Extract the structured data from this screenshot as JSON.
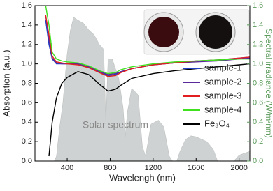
{
  "chart_data": {
    "type": "line",
    "x_label": "Wavelengh (nm)",
    "y_label": "Absorption (a.u.)",
    "y2_label": "Spectral irradiance (W/m²nm)",
    "annotation": "Solar spectrum",
    "xlim": [
      100,
      2100
    ],
    "xticks": [
      400,
      800,
      1200,
      1600,
      2000
    ],
    "ylim": [
      0,
      1.6
    ],
    "yticks": [
      {
        "value": 0,
        "label": "0.0"
      },
      0.2,
      0.4,
      0.6,
      0.8,
      {
        "value": 1,
        "label": "1.0"
      },
      1.2,
      1.4,
      1.6
    ],
    "y2lim": [
      0,
      1.6
    ],
    "y2ticks": [
      {
        "value": 0,
        "label": "0.0"
      },
      0.2,
      0.4,
      0.6,
      0.8,
      {
        "value": 1,
        "label": "1.0"
      },
      1.2,
      1.4,
      1.6
    ],
    "y2_color": "#5a9a5a",
    "x": [
      200,
      230,
      260,
      300,
      350,
      400,
      500,
      600,
      700,
      780,
      850,
      900,
      1000,
      1200,
      1400,
      1600,
      1800,
      2000,
      2100
    ],
    "series": [
      {
        "name": "sample-1",
        "color": "#2040c8",
        "values": [
          1.45,
          1.2,
          1.05,
          1.0,
          1.0,
          1.0,
          1.0,
          0.97,
          0.92,
          0.88,
          0.89,
          0.92,
          0.95,
          0.99,
          1.01,
          1.03,
          1.04,
          1.06,
          1.07
        ]
      },
      {
        "name": "sample-2",
        "color": "#5a2a9a",
        "values": [
          1.5,
          1.25,
          1.06,
          1.01,
          1.0,
          1.0,
          1.0,
          0.97,
          0.92,
          0.89,
          0.9,
          0.92,
          0.95,
          0.99,
          1.01,
          1.02,
          1.03,
          1.05,
          1.06
        ]
      },
      {
        "name": "sample-3",
        "color": "#e02020",
        "values": [
          1.5,
          1.3,
          1.08,
          1.02,
          1.01,
          1.0,
          0.99,
          0.96,
          0.91,
          0.87,
          0.88,
          0.91,
          0.95,
          0.99,
          1.01,
          1.03,
          1.04,
          1.06,
          1.07
        ]
      },
      {
        "name": "sample-4",
        "color": "#40e020",
        "values": [
          1.6,
          1.4,
          1.12,
          1.05,
          1.03,
          1.02,
          1.01,
          0.98,
          0.93,
          0.9,
          0.91,
          0.94,
          0.97,
          1.0,
          1.02,
          1.03,
          1.04,
          1.05,
          1.05
        ]
      },
      {
        "name": "Fe₃O₄",
        "color": "#000000",
        "values": [
          null,
          0.05,
          0.4,
          0.65,
          0.8,
          0.86,
          0.92,
          0.89,
          0.79,
          0.72,
          0.74,
          0.78,
          0.85,
          0.9,
          0.93,
          0.95,
          0.97,
          0.99,
          1.0
        ]
      }
    ],
    "area": {
      "color": "#cfd2d2",
      "axis": "y2",
      "x": [
        280,
        300,
        330,
        360,
        400,
        430,
        460,
        500,
        550,
        600,
        650,
        700,
        740,
        760,
        780,
        820,
        880,
        920,
        940,
        960,
        1000,
        1060,
        1100,
        1130,
        1180,
        1250,
        1300,
        1350,
        1380,
        1420,
        1450,
        1500,
        1550,
        1600,
        1700,
        1760,
        1800,
        1950,
        2000,
        2050,
        2100
      ],
      "values": [
        0,
        0.05,
        0.35,
        0.6,
        1.1,
        1.35,
        1.48,
        1.45,
        1.42,
        1.35,
        1.3,
        1.2,
        1.15,
        0.4,
        1.05,
        1.05,
        0.85,
        0.55,
        0.25,
        0.5,
        0.75,
        0.68,
        0.15,
        0.05,
        0.38,
        0.42,
        0.35,
        0.05,
        0,
        0,
        0.1,
        0.22,
        0.26,
        0.25,
        0.2,
        0.12,
        0,
        0,
        0.06,
        0.08,
        0.1
      ]
    },
    "legend": "right"
  }
}
